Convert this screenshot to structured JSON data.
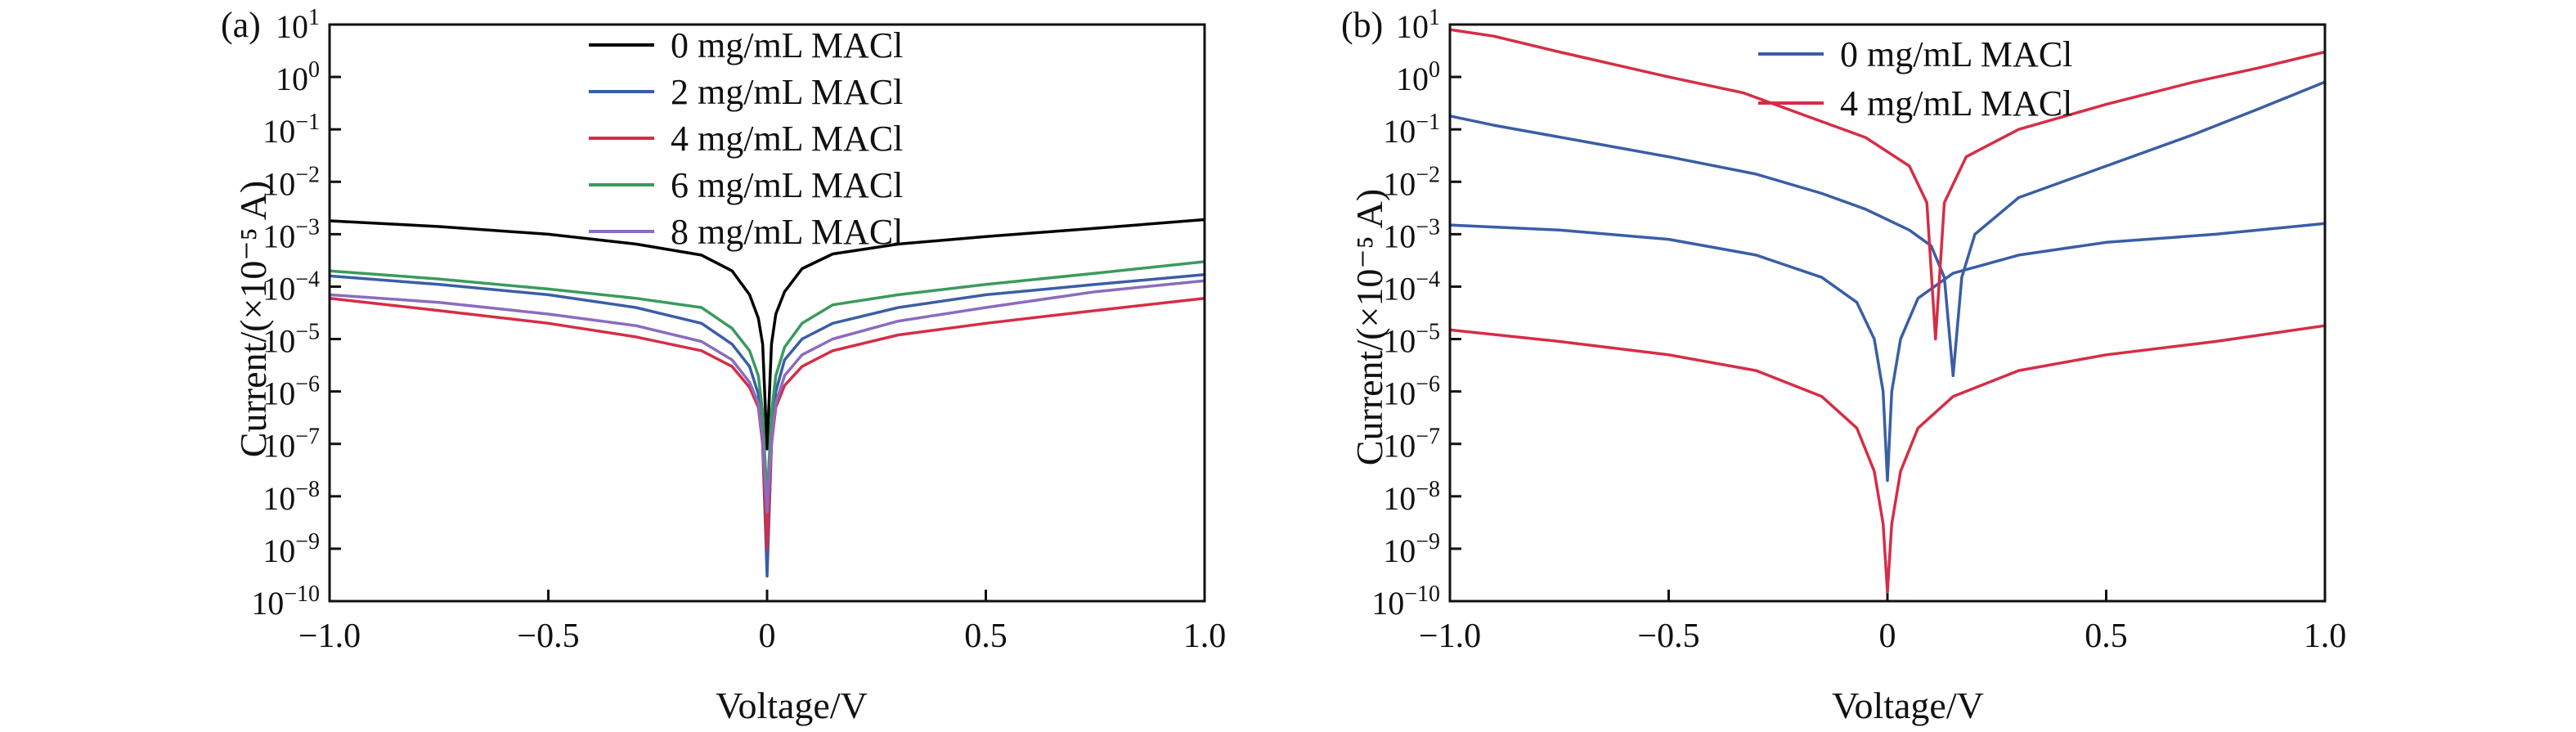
{
  "chart_data": [
    {
      "panel_label": "(a)",
      "type": "line",
      "xlabel": "Voltage/V",
      "ylabel": "Current/(×10⁻⁵ A)",
      "y_scale": "log",
      "xlim": [
        -1.0,
        1.0
      ],
      "ylim": [
        1e-10,
        10
      ],
      "x_ticks": [
        "−1.0",
        "−0.5",
        "0",
        "0.5",
        "1.0"
      ],
      "y_ticks": [
        {
          "base": "10",
          "exp": "1"
        },
        {
          "base": "10",
          "exp": "0"
        },
        {
          "base": "10",
          "exp": "−1"
        },
        {
          "base": "10",
          "exp": "−2"
        },
        {
          "base": "10",
          "exp": "−3"
        },
        {
          "base": "10",
          "exp": "−4"
        },
        {
          "base": "10",
          "exp": "−5"
        },
        {
          "base": "10",
          "exp": "−6"
        },
        {
          "base": "10",
          "exp": "−7"
        },
        {
          "base": "10",
          "exp": "−8"
        },
        {
          "base": "10",
          "exp": "−9"
        },
        {
          "base": "10",
          "exp": "−10"
        }
      ],
      "legend_position": "top-center",
      "series": [
        {
          "name": "0 mg/mL MACl",
          "color": "#000000",
          "x": [
            -1.0,
            -0.75,
            -0.5,
            -0.3,
            -0.15,
            -0.08,
            -0.04,
            -0.02,
            -0.01,
            0,
            0.01,
            0.02,
            0.04,
            0.08,
            0.15,
            0.3,
            0.5,
            0.75,
            1.0
          ],
          "y": [
            0.0018,
            0.0014,
            0.001,
            0.00065,
            0.0004,
            0.0002,
            7e-05,
            2.5e-05,
            8e-06,
            8e-08,
            8e-06,
            3e-05,
            8e-05,
            0.00022,
            0.00042,
            0.00065,
            0.0009,
            0.0013,
            0.0019
          ]
        },
        {
          "name": "2 mg/mL MACl",
          "color": "#3a5ea6",
          "x": [
            -1.0,
            -0.75,
            -0.5,
            -0.3,
            -0.15,
            -0.08,
            -0.04,
            -0.02,
            -0.01,
            0,
            0.01,
            0.02,
            0.04,
            0.08,
            0.15,
            0.3,
            0.5,
            0.75,
            1.0
          ],
          "y": [
            0.00016,
            0.00011,
            7e-05,
            4e-05,
            2e-05,
            8e-06,
            3e-06,
            9e-07,
            1e-07,
            3e-10,
            1e-07,
            1e-06,
            4e-06,
            1e-05,
            2e-05,
            4e-05,
            7e-05,
            0.00011,
            0.00017
          ]
        },
        {
          "name": "4 mg/mL MACl",
          "color": "#d62d46",
          "x": [
            -1.0,
            -0.75,
            -0.5,
            -0.3,
            -0.15,
            -0.08,
            -0.04,
            -0.02,
            -0.01,
            0,
            0.01,
            0.02,
            0.04,
            0.08,
            0.15,
            0.3,
            0.5,
            0.75,
            1.0
          ],
          "y": [
            6e-05,
            3.5e-05,
            2e-05,
            1.1e-05,
            6e-06,
            3e-06,
            1.2e-06,
            5e-07,
            1e-07,
            1e-09,
            1e-07,
            5e-07,
            1.3e-06,
            3e-06,
            6e-06,
            1.2e-05,
            2e-05,
            3.5e-05,
            6e-05
          ]
        },
        {
          "name": "6 mg/mL MACl",
          "color": "#3b9a5e",
          "x": [
            -1.0,
            -0.75,
            -0.5,
            -0.3,
            -0.15,
            -0.08,
            -0.04,
            -0.02,
            -0.01,
            0,
            0.01,
            0.02,
            0.04,
            0.08,
            0.15,
            0.3,
            0.5,
            0.75,
            1.0
          ],
          "y": [
            0.0002,
            0.00014,
            9e-05,
            6e-05,
            4e-05,
            1.6e-05,
            6e-06,
            2e-06,
            4e-07,
            8e-09,
            4e-07,
            2e-06,
            7e-06,
            2e-05,
            4.5e-05,
            7e-05,
            0.00011,
            0.00018,
            0.0003
          ]
        },
        {
          "name": "8 mg/mL MACl",
          "color": "#8a6cc0",
          "x": [
            -1.0,
            -0.75,
            -0.5,
            -0.3,
            -0.15,
            -0.08,
            -0.04,
            -0.02,
            -0.01,
            0,
            0.01,
            0.02,
            0.04,
            0.08,
            0.15,
            0.3,
            0.5,
            0.75,
            1.0
          ],
          "y": [
            7e-05,
            5e-05,
            3e-05,
            1.8e-05,
            9e-06,
            4e-06,
            1.5e-06,
            6e-07,
            1.2e-07,
            5e-09,
            1.2e-07,
            6e-07,
            2e-06,
            5e-06,
            1e-05,
            2.2e-05,
            4e-05,
            8e-05,
            0.00013
          ]
        }
      ]
    },
    {
      "panel_label": "(b)",
      "type": "line",
      "xlabel": "Voltage/V",
      "ylabel": "Current/(×10⁻⁵ A)",
      "y_scale": "log",
      "xlim": [
        -1.0,
        1.0
      ],
      "ylim": [
        1e-10,
        10
      ],
      "x_ticks": [
        "−1.0",
        "−0.5",
        "0",
        "0.5",
        "1.0"
      ],
      "y_ticks": [
        {
          "base": "10",
          "exp": "1"
        },
        {
          "base": "10",
          "exp": "0"
        },
        {
          "base": "10",
          "exp": "−1"
        },
        {
          "base": "10",
          "exp": "−2"
        },
        {
          "base": "10",
          "exp": "−3"
        },
        {
          "base": "10",
          "exp": "−4"
        },
        {
          "base": "10",
          "exp": "−5"
        },
        {
          "base": "10",
          "exp": "−6"
        },
        {
          "base": "10",
          "exp": "−7"
        },
        {
          "base": "10",
          "exp": "−8"
        },
        {
          "base": "10",
          "exp": "−9"
        },
        {
          "base": "10",
          "exp": "−10"
        }
      ],
      "legend_position": "top-center",
      "series": [
        {
          "name": "0 mg/mL MACl",
          "color": "#3a5ea6",
          "segments": [
            {
              "x": [
                -1.0,
                -0.9,
                -0.7,
                -0.5,
                -0.3,
                -0.15,
                -0.05,
                0.05,
                0.1,
                0.13,
                0.15,
                0.17,
                0.2,
                0.3,
                0.5,
                0.7,
                0.85,
                1.0
              ],
              "y": [
                0.18,
                0.12,
                0.06,
                0.03,
                0.014,
                0.006,
                0.003,
                0.0012,
                0.0006,
                0.00015,
                2e-06,
                0.00015,
                0.001,
                0.005,
                0.02,
                0.08,
                0.25,
                0.8
              ]
            },
            {
              "x": [
                -1.0,
                -0.75,
                -0.5,
                -0.3,
                -0.15,
                -0.07,
                -0.03,
                -0.01,
                0,
                0.01,
                0.03,
                0.07,
                0.15,
                0.3,
                0.5,
                0.75,
                1.0
              ],
              "y": [
                0.0015,
                0.0012,
                0.0008,
                0.0004,
                0.00015,
                5e-05,
                1e-05,
                1e-06,
                2e-08,
                1e-06,
                1e-05,
                6e-05,
                0.00018,
                0.0004,
                0.0007,
                0.001,
                0.0016
              ]
            }
          ]
        },
        {
          "name": "4 mg/mL MACl",
          "color": "#d62d46",
          "segments": [
            {
              "x": [
                -1.0,
                -0.9,
                -0.75,
                -0.5,
                -0.33,
                -0.2,
                -0.05,
                0.05,
                0.09,
                0.11,
                0.13,
                0.18,
                0.3,
                0.5,
                0.7,
                0.85,
                1.0
              ],
              "y": [
                8,
                6,
                3,
                1,
                0.5,
                0.2,
                0.07,
                0.02,
                0.004,
                1e-05,
                0.004,
                0.03,
                0.1,
                0.3,
                0.8,
                1.5,
                3
              ]
            },
            {
              "x": [
                -1.0,
                -0.75,
                -0.5,
                -0.3,
                -0.15,
                -0.07,
                -0.03,
                -0.01,
                0,
                0.01,
                0.03,
                0.07,
                0.15,
                0.3,
                0.5,
                0.75,
                1.0
              ],
              "y": [
                1.5e-05,
                9e-06,
                5e-06,
                2.5e-06,
                8e-07,
                2e-07,
                3e-08,
                3e-09,
                1.5e-10,
                3e-09,
                3e-08,
                2e-07,
                8e-07,
                2.5e-06,
                5e-06,
                9e-06,
                1.8e-05
              ]
            }
          ]
        }
      ]
    }
  ]
}
